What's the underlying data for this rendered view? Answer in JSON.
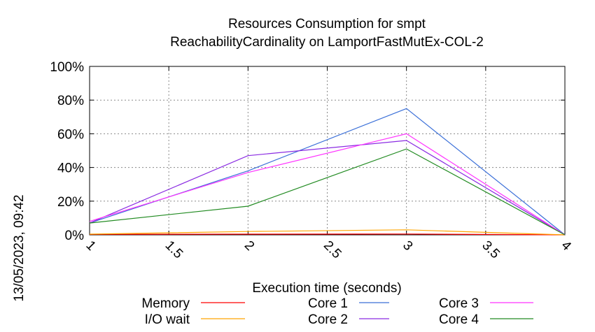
{
  "chart_data": {
    "type": "line",
    "title": [
      "Resources Consumption for smpt",
      "ReachabilityCardinality on LamportFastMutEx-COL-2"
    ],
    "xlabel": "Execution time (seconds)",
    "ylabel": "",
    "xlim": [
      1,
      4
    ],
    "ylim": [
      0,
      100
    ],
    "x_ticks": [
      "1",
      "1.5",
      "2",
      "2.5",
      "3",
      "3.5",
      "4"
    ],
    "y_ticks": [
      "0%",
      "20%",
      "40%",
      "60%",
      "80%",
      "100%"
    ],
    "grid": true,
    "legend_position": "bottom",
    "x": [
      1,
      2,
      3,
      4
    ],
    "series": [
      {
        "name": "Memory",
        "color": "#ff0000",
        "values": [
          0.3,
          0.4,
          0.5,
          0
        ]
      },
      {
        "name": "I/O wait",
        "color": "#ffa500",
        "values": [
          0.4,
          2,
          3,
          0
        ]
      },
      {
        "name": "Core 1",
        "color": "#3a6fd8",
        "values": [
          7,
          38,
          75,
          0
        ]
      },
      {
        "name": "Core 2",
        "color": "#8a2be2",
        "values": [
          7,
          47,
          56,
          0
        ]
      },
      {
        "name": "Core 3",
        "color": "#ff33ff",
        "values": [
          8,
          37,
          60,
          0
        ]
      },
      {
        "name": "Core 4",
        "color": "#228b22",
        "values": [
          7,
          17,
          51,
          0
        ]
      }
    ]
  },
  "timestamp": "13/05/2023, 09:42"
}
